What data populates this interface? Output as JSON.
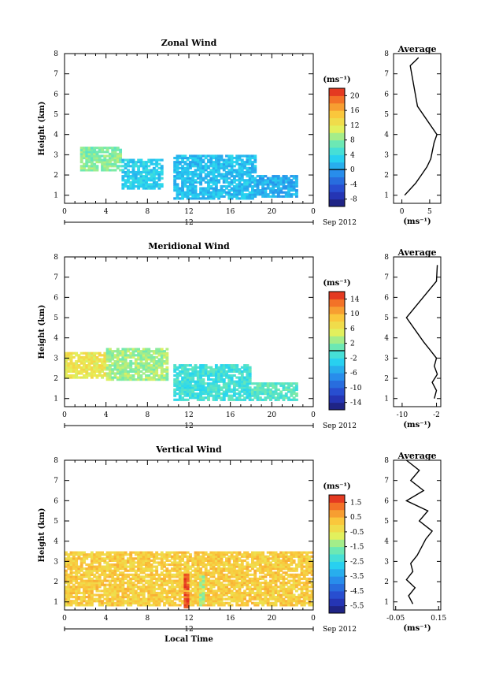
{
  "chart_data": [
    {
      "type": "heatmap",
      "title": "Zonal Wind",
      "ylabel": "Height (km)",
      "xlabel": "",
      "x_ticks": [
        "0",
        "4",
        "8",
        "12",
        "16",
        "20",
        "0"
      ],
      "y_ticks": [
        "1",
        "2",
        "3",
        "4",
        "5",
        "6",
        "7",
        "8"
      ],
      "xlim": [
        0,
        24
      ],
      "ylim": [
        0.6,
        8.0
      ],
      "date_axis": {
        "day": "12",
        "month_year": "Sep 2012"
      },
      "colorbar": {
        "unit": "(ms⁻¹)",
        "ticks": [
          "20",
          "16",
          "12",
          "8",
          "4",
          "0",
          "-4",
          "-8"
        ],
        "min": -10,
        "max": 22,
        "contour": 0
      },
      "data_summary": [
        {
          "hours": [
            1.5,
            5.5
          ],
          "height_range": [
            2.2,
            3.4
          ],
          "value": 8
        },
        {
          "hours": [
            5.5,
            9.5
          ],
          "height_range": [
            1.3,
            2.8
          ],
          "value": 3
        },
        {
          "hours": [
            10.5,
            18.5
          ],
          "height_range": [
            0.8,
            3.0
          ],
          "value": 2
        },
        {
          "hours": [
            18.5,
            22.5
          ],
          "height_range": [
            0.9,
            2.0
          ],
          "value": 1
        }
      ],
      "average_profile": {
        "title": "Average",
        "xlabel": "(ms⁻¹)",
        "x_ticks": [
          "0",
          "5"
        ],
        "xlim": [
          -1.5,
          7
        ],
        "height": [
          1.0,
          1.3,
          1.6,
          2.0,
          2.4,
          2.8,
          3.2,
          3.6,
          4.0,
          5.4,
          7.4,
          7.8
        ],
        "value": [
          0.5,
          1.5,
          2.5,
          3.5,
          4.5,
          5.2,
          5.5,
          5.8,
          6.3,
          2.8,
          1.5,
          3.0
        ]
      }
    },
    {
      "type": "heatmap",
      "title": "Meridional Wind",
      "ylabel": "Height (km)",
      "xlabel": "",
      "x_ticks": [
        "0",
        "4",
        "8",
        "12",
        "16",
        "20",
        "0"
      ],
      "y_ticks": [
        "1",
        "2",
        "3",
        "4",
        "5",
        "6",
        "7",
        "8"
      ],
      "xlim": [
        0,
        24
      ],
      "ylim": [
        0.6,
        8.0
      ],
      "date_axis": {
        "day": "12",
        "month_year": "Sep 2012"
      },
      "colorbar": {
        "unit": "(ms⁻¹)",
        "ticks": [
          "14",
          "10",
          "6",
          "2",
          "-2",
          "-6",
          "-10",
          "-14"
        ],
        "min": -16,
        "max": 16,
        "contour": 0
      },
      "data_summary": [
        {
          "hours": [
            0,
            4
          ],
          "height_range": [
            2.0,
            3.3
          ],
          "value": 6
        },
        {
          "hours": [
            4,
            10
          ],
          "height_range": [
            1.9,
            3.5
          ],
          "value": 3
        },
        {
          "hours": [
            10.5,
            18
          ],
          "height_range": [
            0.9,
            2.7
          ],
          "value": -1
        },
        {
          "hours": [
            18,
            22.5
          ],
          "height_range": [
            0.9,
            1.8
          ],
          "value": 0
        }
      ],
      "average_profile": {
        "title": "Average",
        "xlabel": "(ms⁻¹)",
        "x_ticks": [
          "-10",
          "-2"
        ],
        "xlim": [
          -12,
          -1
        ],
        "height": [
          1.0,
          1.4,
          1.8,
          2.2,
          2.6,
          3.0,
          3.4,
          3.8,
          5.0,
          6.8,
          7.6
        ],
        "value": [
          -2.5,
          -2.0,
          -3.0,
          -1.8,
          -2.5,
          -2.0,
          -3.5,
          -5.0,
          -9.0,
          -2.0,
          -1.8
        ]
      }
    },
    {
      "type": "heatmap",
      "title": "Vertical Wind",
      "ylabel": "Height (km)",
      "xlabel": "Local Time",
      "x_ticks": [
        "0",
        "4",
        "8",
        "12",
        "16",
        "20",
        "0"
      ],
      "y_ticks": [
        "1",
        "2",
        "3",
        "4",
        "5",
        "6",
        "7",
        "8"
      ],
      "xlim": [
        0,
        24
      ],
      "ylim": [
        0.6,
        8.0
      ],
      "date_axis": {
        "day": "12",
        "month_year": "Sep 2012"
      },
      "colorbar": {
        "unit": "(ms⁻¹)",
        "ticks": [
          "1.5",
          "0.5",
          "-0.5",
          "-1.5",
          "-2.5",
          "-3.5",
          "-4.5",
          "-5.5"
        ],
        "min": -6.0,
        "max": 2.0
      },
      "data_summary": [
        {
          "hours": [
            0,
            24
          ],
          "height_range": [
            0.8,
            3.5
          ],
          "value": 0.1
        },
        {
          "hours": [
            11.5,
            12.0
          ],
          "height_range": [
            0.7,
            2.4
          ],
          "value": 1.5
        },
        {
          "hours": [
            13.0,
            13.4
          ],
          "height_range": [
            0.8,
            2.3
          ],
          "value": -1.2
        }
      ],
      "average_profile": {
        "title": "Average",
        "xlabel": "(ms⁻¹)",
        "x_ticks": [
          "-0.05",
          "0.15"
        ],
        "xlim": [
          -0.06,
          0.16
        ],
        "height": [
          0.9,
          1.3,
          1.7,
          2.1,
          2.5,
          2.9,
          3.3,
          3.7,
          4.1,
          4.5,
          5.0,
          5.5,
          6.0,
          6.5,
          7.0,
          7.5,
          8.0
        ],
        "value": [
          0.03,
          0.01,
          0.04,
          0.0,
          0.03,
          0.02,
          0.05,
          0.07,
          0.09,
          0.12,
          0.06,
          0.1,
          0.0,
          0.08,
          0.02,
          0.06,
          0.0
        ]
      }
    }
  ]
}
